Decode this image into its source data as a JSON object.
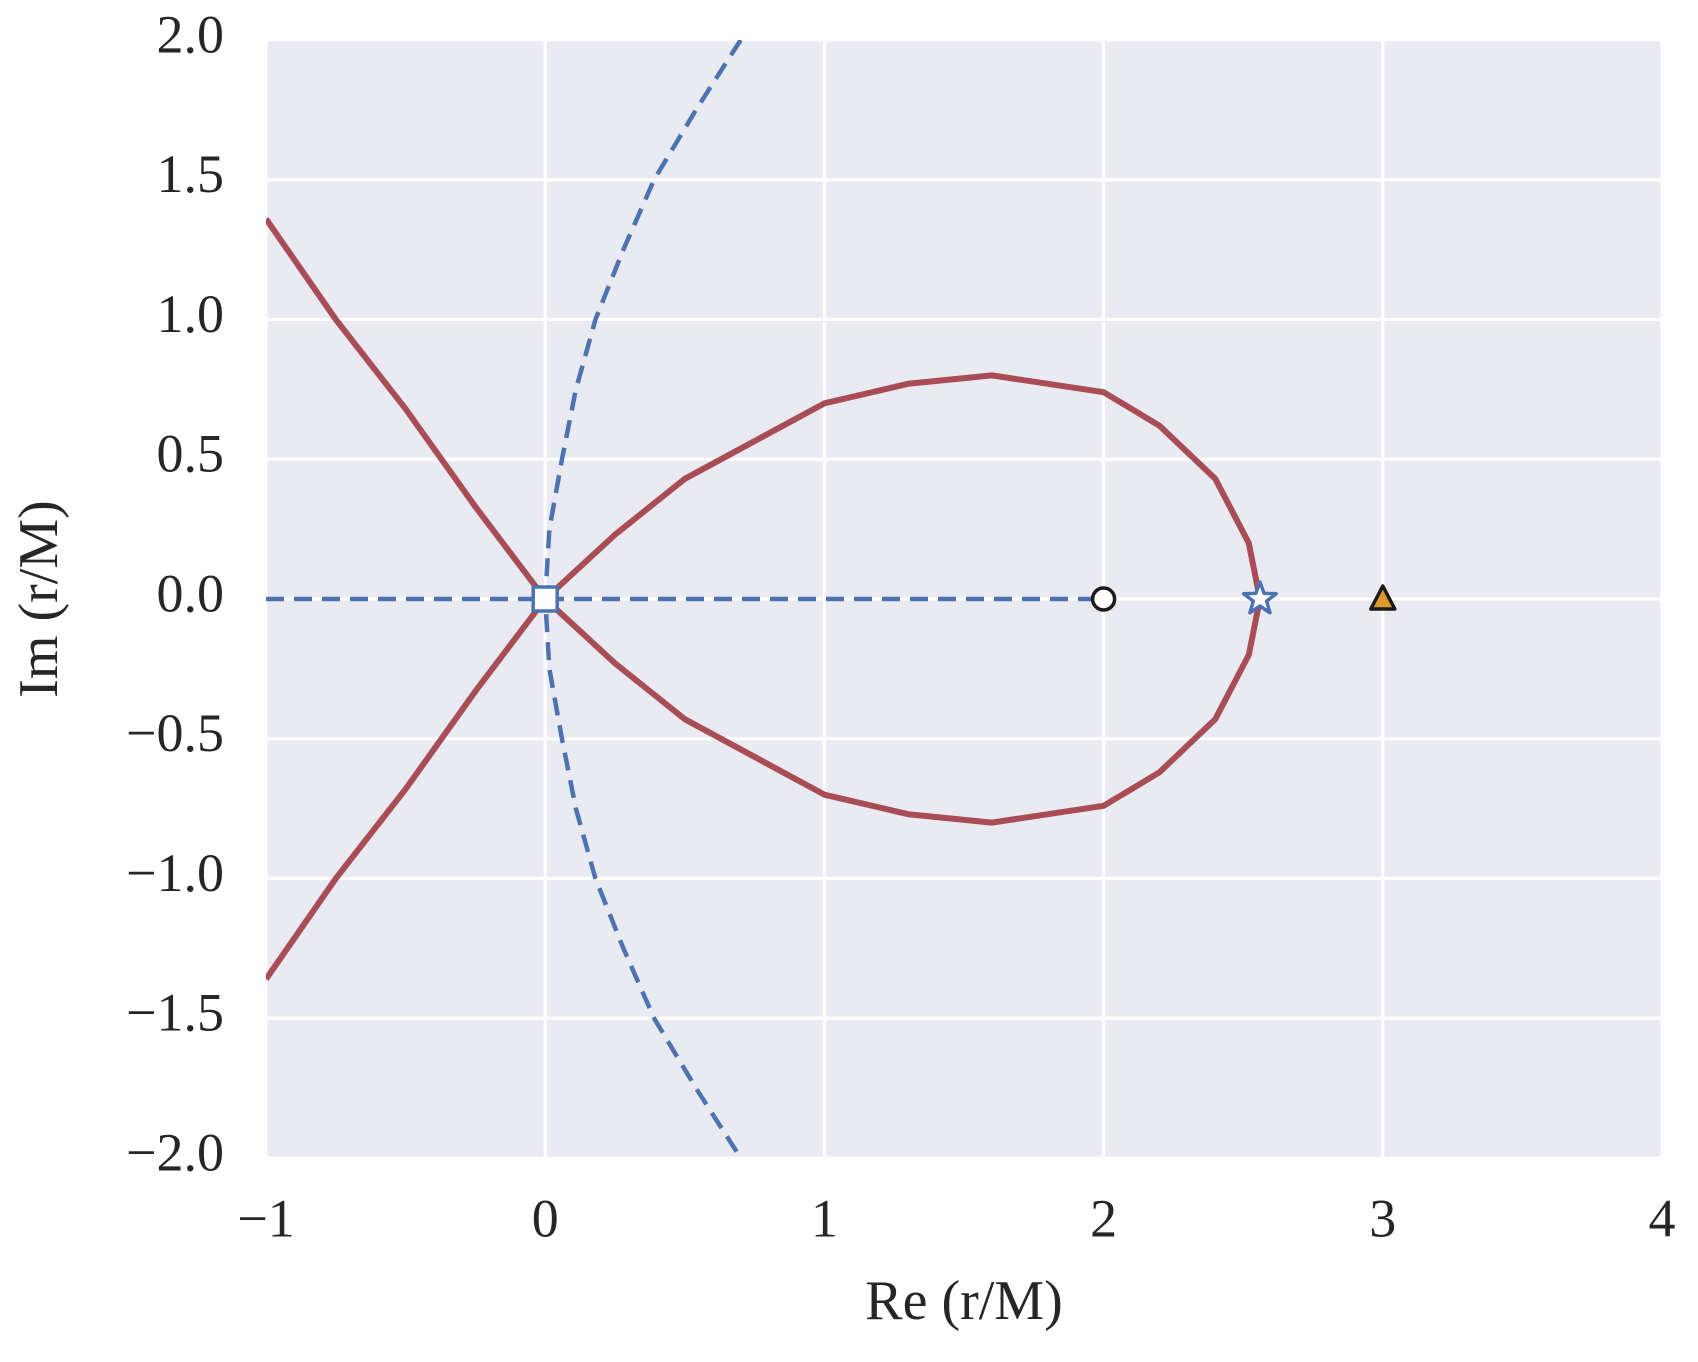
{
  "chart_data": {
    "type": "line",
    "xlabel": "Re (r/M)",
    "ylabel": "Im (r/M)",
    "xlim": [
      -1,
      4
    ],
    "ylim": [
      -2,
      2
    ],
    "xticks": [
      {
        "value": -1,
        "label": "−1"
      },
      0,
      1,
      2,
      3,
      4
    ],
    "yticks": [
      {
        "value": -2,
        "label": "−2.0"
      },
      {
        "value": -1.5,
        "label": "−1.5"
      },
      {
        "value": -1,
        "label": "−1.0"
      },
      {
        "value": -0.5,
        "label": "−0.5"
      },
      {
        "value": 0,
        "label": "0.0"
      },
      0.5,
      {
        "value": 1,
        "label": "1.0"
      },
      1.5,
      {
        "value": 2,
        "label": "2.0"
      }
    ],
    "grid": true,
    "background": "#eaeaf2",
    "series": [
      {
        "color": "#a84d55",
        "style": "solid",
        "x": [
          -1,
          -0.75,
          -0.5,
          -0.25,
          0,
          0.25,
          0.5,
          1,
          1.3,
          1.6,
          2,
          2.2,
          2.4,
          2.52,
          2.56,
          2.52,
          2.4,
          2.2,
          2,
          1.6,
          1.3,
          1,
          0.5,
          0.25,
          0,
          -0.25,
          -0.5,
          -0.75,
          -1
        ],
        "y": [
          1.36,
          1.0,
          0.68,
          0.33,
          0,
          -0.23,
          -0.43,
          -0.7,
          -0.77,
          -0.8,
          -0.74,
          -0.62,
          -0.43,
          -0.2,
          0,
          0.2,
          0.43,
          0.62,
          0.74,
          0.8,
          0.77,
          0.7,
          0.43,
          0.23,
          0,
          -0.33,
          -0.68,
          -1.0,
          -1.36
        ]
      },
      {
        "color": "#4c72b0",
        "style": "dashed",
        "x": [
          0.7,
          0.54,
          0.39,
          0.28,
          0.18,
          0.11,
          0.06,
          0.015,
          0,
          0.015,
          0.06,
          0.11,
          0.18,
          0.28,
          0.39,
          0.54,
          0.7
        ],
        "y": [
          2,
          1.75,
          1.5,
          1.25,
          1,
          0.75,
          0.5,
          0.25,
          0,
          -0.25,
          -0.5,
          -0.75,
          -1,
          -1.25,
          -1.5,
          -1.75,
          -2
        ]
      },
      {
        "color": "#4c72b0",
        "style": "dashed",
        "x": [
          -1,
          2
        ],
        "y": [
          0,
          0
        ]
      }
    ],
    "markers": [
      {
        "shape": "square",
        "x": 0,
        "y": 0,
        "fill": "#ffffff",
        "edge": "#4c72b0"
      },
      {
        "shape": "circle",
        "x": 2,
        "y": 0,
        "fill": "#ffffff",
        "edge": "#1a1a1a"
      },
      {
        "shape": "star",
        "x": 2.56,
        "y": 0,
        "fill": "#ffffff",
        "edge": "#4c72b0"
      },
      {
        "shape": "triangle",
        "x": 3,
        "y": 0,
        "fill": "#dd9a2a",
        "edge": "#1a1a1a"
      }
    ]
  }
}
